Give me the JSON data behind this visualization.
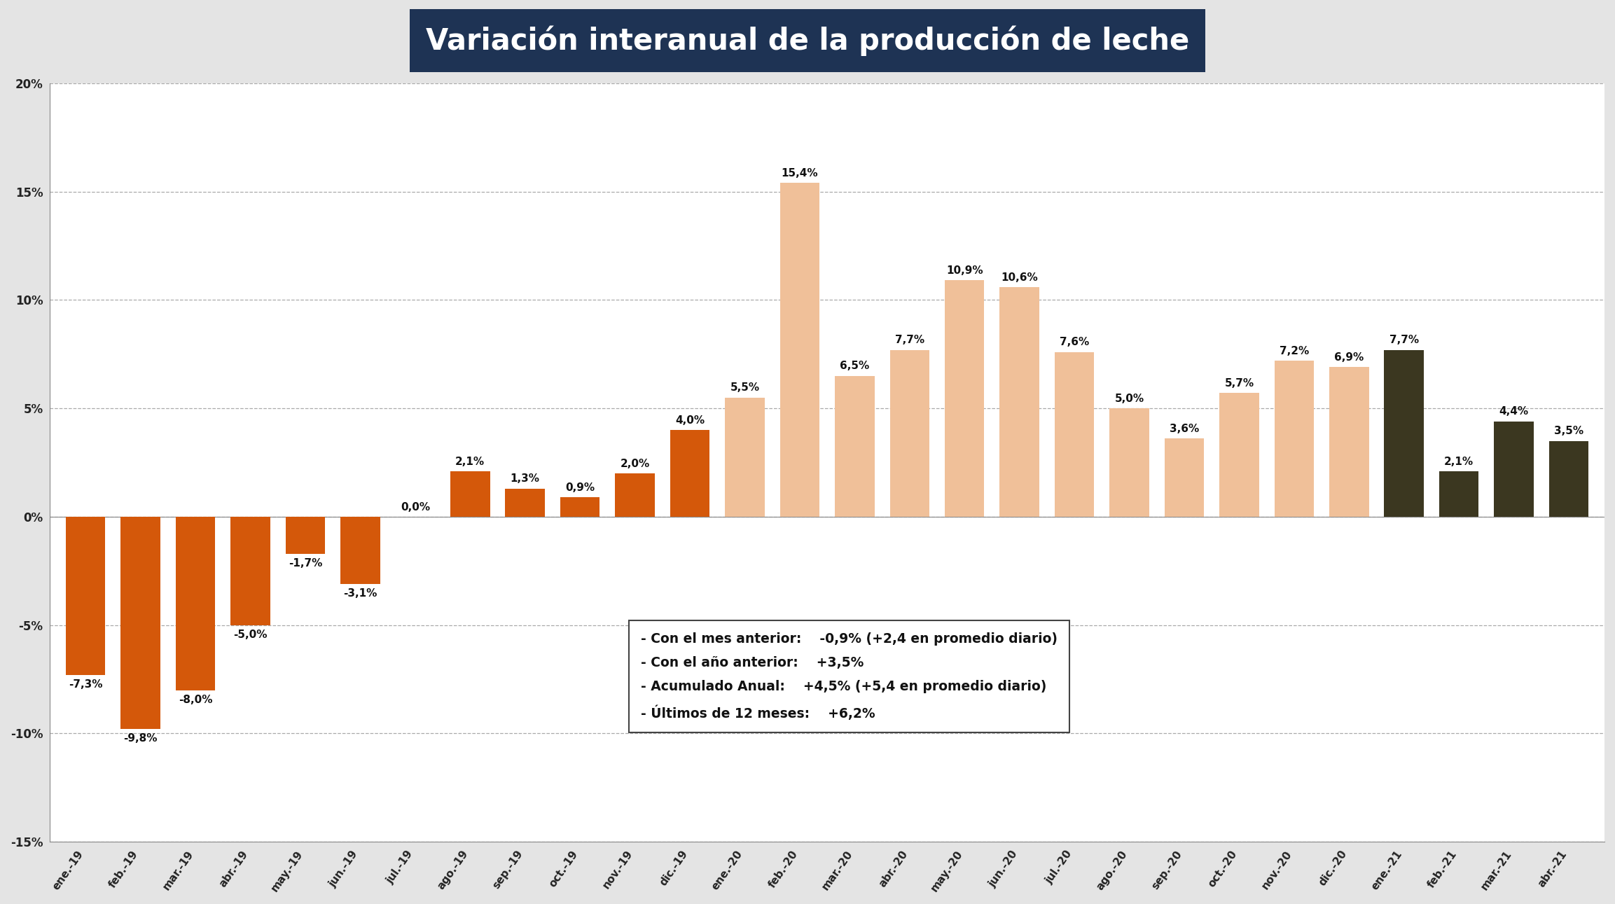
{
  "title": "Variación interanual de la producción de leche",
  "title_bg_color": "#1e3354",
  "title_text_color": "#ffffff",
  "categories": [
    "ene.-19",
    "feb.-19",
    "mar.-19",
    "abr.-19",
    "may.-19",
    "jun.-19",
    "jul.-19",
    "ago.-19",
    "sep.-19",
    "oct.-19",
    "nov.-19",
    "dic.-19",
    "ene.-20",
    "feb.-20",
    "mar.-20",
    "abr.-20",
    "may.-20",
    "jun.-20",
    "jul.-20",
    "ago.-20",
    "sep.-20",
    "oct.-20",
    "nov.-20",
    "dic.-20",
    "ene.-21",
    "feb.-21",
    "mar.-21",
    "abr.-21"
  ],
  "values": [
    -7.3,
    -9.8,
    -8.0,
    -5.0,
    -1.7,
    -3.1,
    0.0,
    2.1,
    1.3,
    0.9,
    2.0,
    4.0,
    5.5,
    15.4,
    6.5,
    7.7,
    10.9,
    10.6,
    7.6,
    5.0,
    3.6,
    5.7,
    7.2,
    6.9,
    7.7,
    2.1,
    4.4,
    3.5
  ],
  "bar_colors": [
    "#d4580a",
    "#d4580a",
    "#d4580a",
    "#d4580a",
    "#d4580a",
    "#d4580a",
    "#d4580a",
    "#d4580a",
    "#d4580a",
    "#d4580a",
    "#d4580a",
    "#d4580a",
    "#f0c099",
    "#f0c099",
    "#f0c099",
    "#f0c099",
    "#f0c099",
    "#f0c099",
    "#f0c099",
    "#f0c099",
    "#f0c099",
    "#f0c099",
    "#f0c099",
    "#f0c099",
    "#3b3720",
    "#3b3720",
    "#3b3720",
    "#3b3720"
  ],
  "ylim": [
    -15,
    20
  ],
  "yticks": [
    -15,
    -10,
    -5,
    0,
    5,
    10,
    15,
    20
  ],
  "ytick_labels": [
    "-15%",
    "-10%",
    "-5%",
    "0%",
    "5%",
    "10%",
    "15%",
    "20%"
  ],
  "bg_color": "#e4e4e4",
  "plot_bg_color": "#ffffff",
  "grid_color": "#aaaaaa",
  "annotation_lines": [
    [
      "- Con el mes anterior:",
      "-0,9% (+2,4 en promedio diario)"
    ],
    [
      "- Con el año anterior:",
      "+3,5%"
    ],
    [
      "- Acumulado Anual:",
      "+4,5% (+5,4 en promedio diario)"
    ],
    [
      "- Últimos de 12 meses:",
      "+6,2%"
    ]
  ]
}
